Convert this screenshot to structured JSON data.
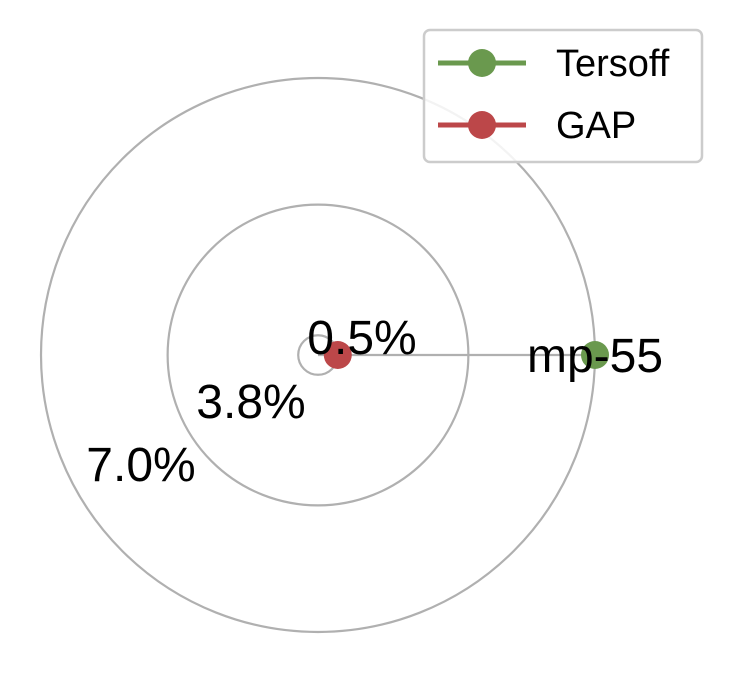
{
  "chart_data": {
    "type": "radar",
    "categories": [
      "mp-55"
    ],
    "radial_ticks": [
      {
        "value": 0.5,
        "label": "0.5%"
      },
      {
        "value": 3.8,
        "label": "3.8%"
      },
      {
        "value": 7.0,
        "label": "7.0%"
      }
    ],
    "rlim": [
      0,
      7.0
    ],
    "series": [
      {
        "name": "Tersoff",
        "color": "#6a994e",
        "values": [
          7.0
        ]
      },
      {
        "name": "GAP",
        "color": "#bc4749",
        "values": [
          0.5
        ]
      }
    ],
    "grid": true,
    "legend_placement": "top-right"
  }
}
